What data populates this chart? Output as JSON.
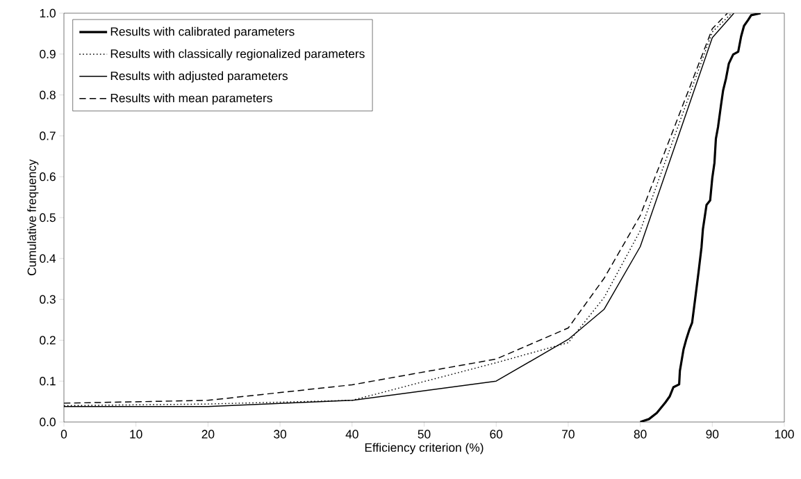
{
  "chart_data": {
    "type": "line",
    "xlabel": "Efficiency criterion (%)",
    "ylabel": "Cumulative frequency",
    "xlim": [
      0,
      100
    ],
    "ylim": [
      0,
      1
    ],
    "xticks": [
      0,
      10,
      20,
      30,
      40,
      50,
      60,
      70,
      80,
      90,
      100
    ],
    "yticks": [
      {
        "value": 0,
        "label": "0.0"
      },
      {
        "value": 0.1,
        "label": "0.1"
      },
      {
        "value": 0.2,
        "label": "0.2"
      },
      {
        "value": 0.3,
        "label": "0.3"
      },
      {
        "value": 0.4,
        "label": "0.4"
      },
      {
        "value": 0.5,
        "label": "0.5"
      },
      {
        "value": 0.6,
        "label": "0.6"
      },
      {
        "value": 0.7,
        "label": "0.7"
      },
      {
        "value": 0.8,
        "label": "0.8"
      },
      {
        "value": 0.9,
        "label": "0.9"
      },
      {
        "value": 1,
        "label": "1.0"
      }
    ],
    "grid": false,
    "legend": "top left",
    "marker": "none",
    "series": [
      {
        "name": "Results with calibrated parameters",
        "color": "#000000",
        "line_style": "solid",
        "x": [
          80,
          81.2,
          82.3,
          83.5,
          84.1,
          84.6,
          85.4,
          85.5,
          86.0,
          86.4,
          86.8,
          87.2,
          87.6,
          88.1,
          88.5,
          88.7,
          89.2,
          89.7,
          90.0,
          90.3,
          90.5,
          90.8,
          91.2,
          91.5,
          91.9,
          92.3,
          92.9,
          93.6,
          94.0,
          94.4,
          95.0,
          95.4,
          96.7
        ],
        "values": [
          0,
          0.007,
          0.022,
          0.048,
          0.063,
          0.085,
          0.092,
          0.125,
          0.177,
          0.203,
          0.225,
          0.243,
          0.298,
          0.368,
          0.427,
          0.472,
          0.531,
          0.542,
          0.597,
          0.634,
          0.693,
          0.722,
          0.774,
          0.811,
          0.84,
          0.877,
          0.899,
          0.906,
          0.943,
          0.969,
          0.984,
          0.995,
          1.0
        ]
      },
      {
        "name": "Results with classically regionalized parameters",
        "color": "#000000",
        "line_style": "dotted",
        "x": [
          0,
          20,
          40,
          60,
          70,
          75,
          80,
          90,
          92.7
        ],
        "values": [
          0.04,
          0.044,
          0.053,
          0.145,
          0.194,
          0.305,
          0.468,
          0.954,
          1.0
        ]
      },
      {
        "name": "Results with adjusted parameters",
        "color": "#000000",
        "line_style": "solid",
        "x": [
          0,
          20,
          40,
          60,
          70,
          75,
          80,
          90,
          93.0
        ],
        "values": [
          0.038,
          0.038,
          0.053,
          0.1,
          0.202,
          0.276,
          0.429,
          0.94,
          1.0
        ]
      },
      {
        "name": "Results with mean parameters",
        "color": "#000000",
        "line_style": "dashed",
        "x": [
          0,
          20,
          40,
          60,
          70,
          75,
          80,
          90,
          92.1
        ],
        "values": [
          0.046,
          0.053,
          0.091,
          0.154,
          0.23,
          0.352,
          0.505,
          0.962,
          1.0
        ]
      }
    ]
  }
}
